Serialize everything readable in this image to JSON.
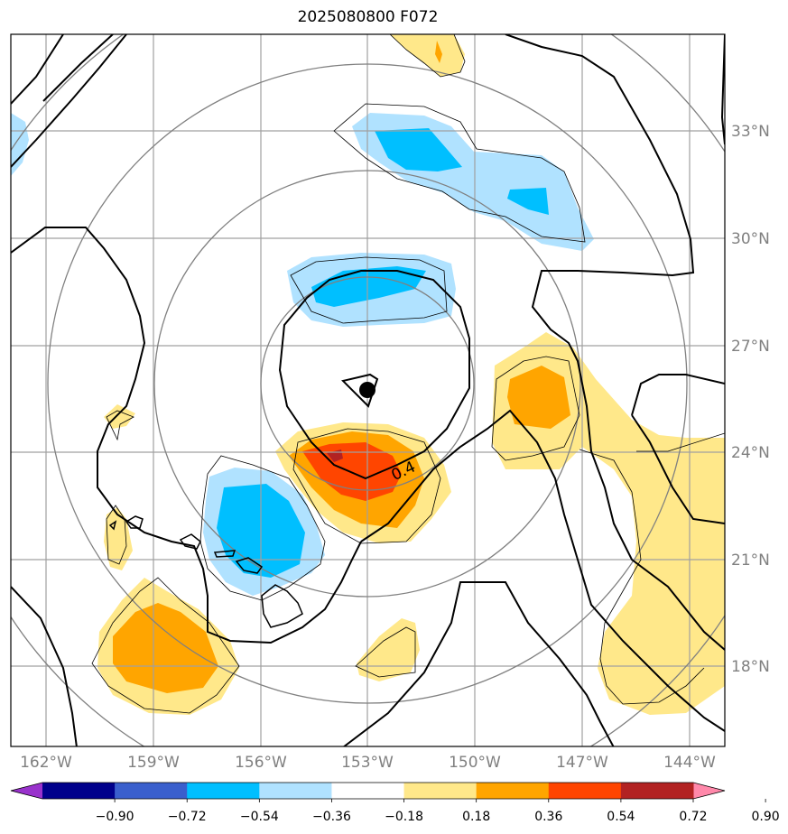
{
  "title": "2025080800 F072",
  "map": {
    "lat_labels": [
      "33°N",
      "30°N",
      "27°N",
      "24°N",
      "21°N",
      "18°N"
    ],
    "lon_labels": [
      "162°W",
      "159°W",
      "156°W",
      "153°W",
      "150°W",
      "147°W",
      "144°W"
    ],
    "contour_label": "0.4",
    "gridline_color": "#a0a0a0",
    "ring_color": "#808080"
  },
  "colorbar": {
    "ticks": [
      "−0.90",
      "−0.72",
      "−0.54",
      "−0.36",
      "−0.18",
      "0.18",
      "0.36",
      "0.54",
      "0.72",
      "0.90"
    ],
    "colors": [
      "#9932cc",
      "#00008b",
      "#3a5fcd",
      "#00bfff",
      "#b0e2ff",
      "#ffffff",
      "#ffe88a",
      "#ffa500",
      "#ff4500",
      "#b22222",
      "#ff88aa"
    ]
  }
}
